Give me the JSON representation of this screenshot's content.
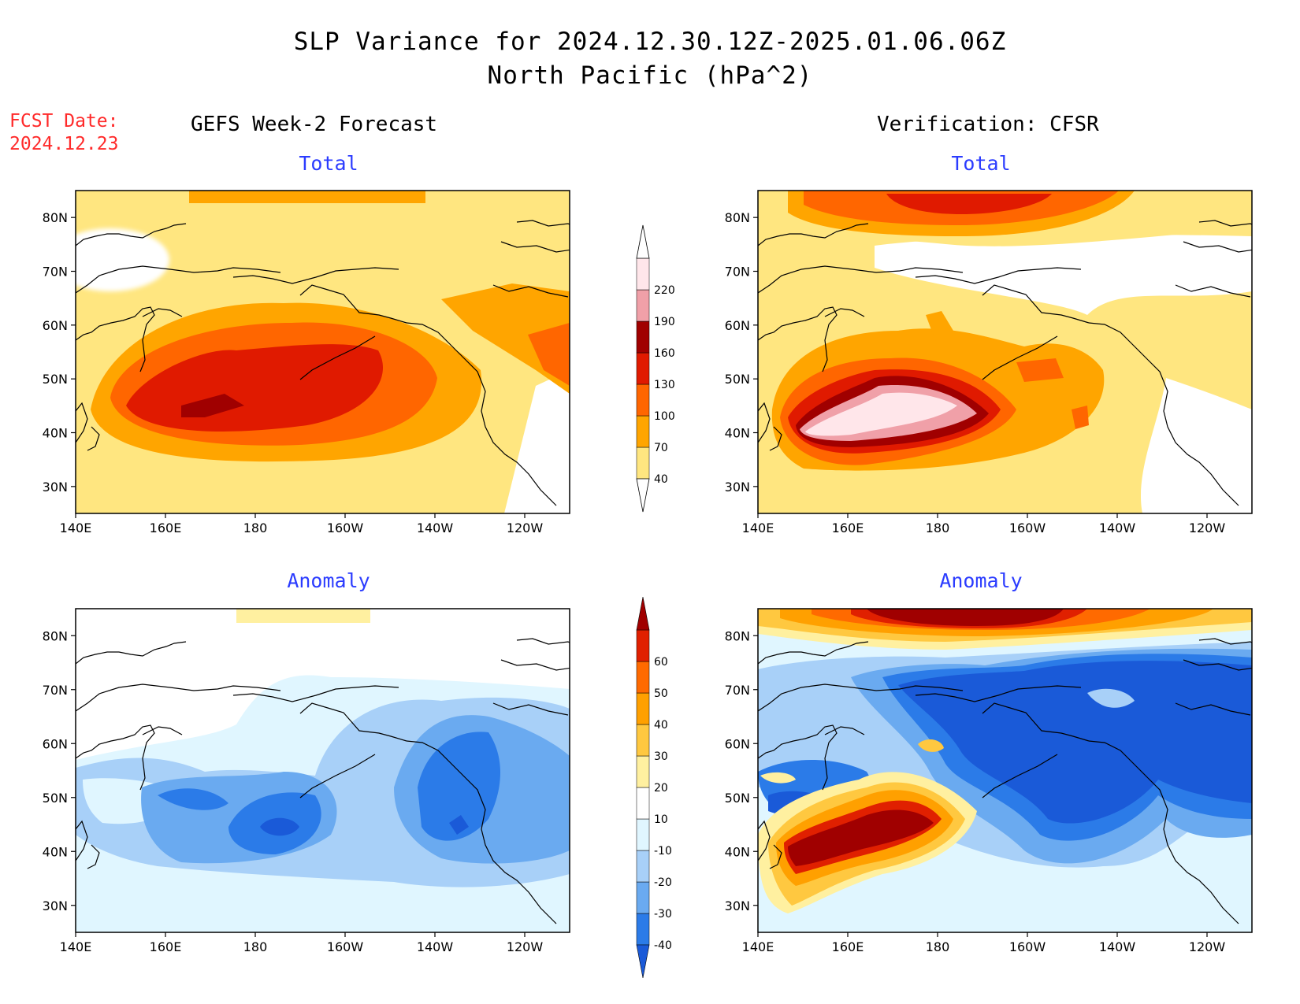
{
  "header": {
    "title_line1": "SLP Variance for 2024.12.30.12Z-2025.01.06.06Z",
    "title_line2": "North Pacific (hPa^2)",
    "fcst_label": "FCST Date:",
    "fcst_date": "2024.12.23"
  },
  "columns": {
    "left": "GEFS Week-2 Forecast",
    "right": "Verification: CFSR"
  },
  "panels": {
    "total_label": "Total",
    "anomaly_label": "Anomaly"
  },
  "axes": {
    "lon_ticks": [
      "140E",
      "160E",
      "180",
      "160W",
      "140W",
      "120W"
    ],
    "lat_ticks": [
      "80N",
      "70N",
      "60N",
      "50N",
      "40N",
      "30N"
    ]
  },
  "colorbars": {
    "total": {
      "levels": [
        "40",
        "70",
        "100",
        "130",
        "160",
        "190",
        "220"
      ],
      "colors": [
        "#ffe680",
        "#ffa500",
        "#ff6600",
        "#e01a00",
        "#a00000",
        "#f0a0a8",
        "#ffe6ea"
      ]
    },
    "anomaly": {
      "levels": [
        "-40",
        "-30",
        "-20",
        "-10",
        "10",
        "20",
        "30",
        "40",
        "50",
        "60"
      ],
      "colors": [
        "#1a5ad8",
        "#2b7be8",
        "#6aaaf0",
        "#a8d0f8",
        "#e0f6ff",
        "#ffffff",
        "#fff0a0",
        "#ffc840",
        "#ffa000",
        "#ff6a00",
        "#e02000",
        "#a00000"
      ]
    }
  }
}
